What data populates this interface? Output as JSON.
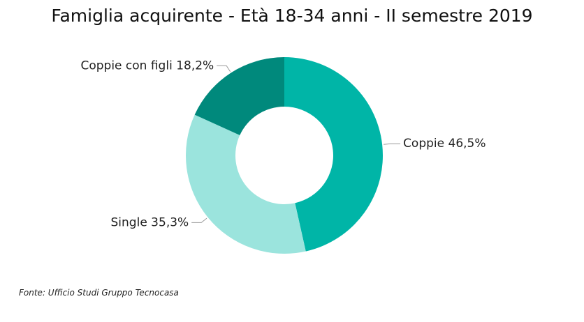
{
  "chart_data": {
    "type": "pie",
    "title": "Famiglia acquirente - Età 18-34 anni - II semestre 2019",
    "categories": [
      "Coppie",
      "Single",
      "Coppie con figli"
    ],
    "values": [
      46.5,
      35.3,
      18.2
    ],
    "value_labels": [
      "46,5%",
      "35,3%",
      "18,2%"
    ],
    "donut": true,
    "colors": [
      "#00B5A7",
      "#9BE4DD",
      "#00897C"
    ],
    "legend": "none",
    "data_labels": true
  },
  "source": "Fonte: Ufficio Studi Gruppo Tecnocasa"
}
